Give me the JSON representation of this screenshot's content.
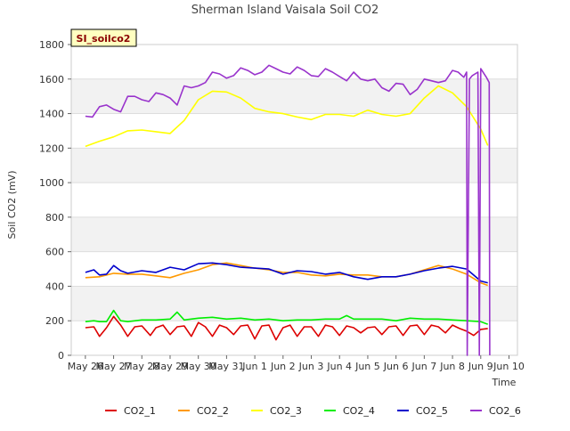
{
  "chart_data": {
    "type": "line",
    "title": "Sherman Island Vaisala Soil CO2",
    "site_label": "SI_soilco2",
    "xlabel": "Time",
    "ylabel": "Soil CO2 (mV)",
    "ylim": [
      0,
      1800
    ],
    "yticks": [
      0,
      200,
      400,
      600,
      800,
      1000,
      1200,
      1400,
      1600,
      1800
    ],
    "xlim": [
      -0.5,
      15.3
    ],
    "xticks": [
      {
        "x": 0,
        "label": "May 26"
      },
      {
        "x": 1,
        "label": "May 27"
      },
      {
        "x": 2,
        "label": "May 28"
      },
      {
        "x": 3,
        "label": "May 29"
      },
      {
        "x": 4,
        "label": "May 30"
      },
      {
        "x": 5,
        "label": "May 31"
      },
      {
        "x": 6,
        "label": "Jun 1"
      },
      {
        "x": 7,
        "label": "Jun 2"
      },
      {
        "x": 8,
        "label": "Jun 3"
      },
      {
        "x": 9,
        "label": "Jun 4"
      },
      {
        "x": 10,
        "label": "Jun 5"
      },
      {
        "x": 11,
        "label": "Jun 6"
      },
      {
        "x": 12,
        "label": "Jun 7"
      },
      {
        "x": 13,
        "label": "Jun 8"
      },
      {
        "x": 14,
        "label": "Jun 9"
      },
      {
        "x": 15,
        "label": "Jun 10"
      }
    ],
    "x_unit_note": "",
    "grid": true,
    "background_bands": true,
    "legend_placement": "bottom",
    "series": [
      {
        "name": "CO2_1",
        "color": "#dd0000",
        "x": [
          0,
          0.3,
          0.5,
          0.75,
          1,
          1.25,
          1.5,
          1.75,
          2,
          2.3,
          2.5,
          2.75,
          3,
          3.25,
          3.5,
          3.75,
          4,
          4.25,
          4.5,
          4.75,
          5,
          5.25,
          5.5,
          5.75,
          6,
          6.25,
          6.5,
          6.75,
          7,
          7.25,
          7.5,
          7.75,
          8,
          8.25,
          8.5,
          8.75,
          9,
          9.25,
          9.5,
          9.75,
          10,
          10.25,
          10.5,
          10.75,
          11,
          11.25,
          11.5,
          11.75,
          12,
          12.25,
          12.5,
          12.75,
          13,
          13.25,
          13.5,
          13.75,
          14,
          14.25
        ],
        "values": [
          160,
          165,
          110,
          160,
          225,
          175,
          110,
          165,
          170,
          115,
          160,
          175,
          120,
          165,
          170,
          110,
          190,
          165,
          110,
          175,
          160,
          120,
          170,
          175,
          95,
          170,
          175,
          90,
          160,
          175,
          110,
          165,
          165,
          110,
          175,
          165,
          115,
          170,
          160,
          130,
          160,
          165,
          120,
          165,
          170,
          115,
          170,
          175,
          120,
          175,
          165,
          130,
          175,
          155,
          140,
          115,
          150,
          155
        ]
      },
      {
        "name": "CO2_2",
        "color": "#ff9900",
        "x": [
          0,
          0.5,
          1,
          1.5,
          2,
          2.5,
          3,
          3.5,
          4,
          4.5,
          5,
          5.5,
          6,
          6.5,
          7,
          7.5,
          8,
          8.5,
          9,
          9.5,
          10,
          10.5,
          11,
          11.5,
          12,
          12.5,
          13,
          13.5,
          14,
          14.25
        ],
        "values": [
          450,
          455,
          475,
          470,
          470,
          460,
          450,
          475,
          495,
          525,
          535,
          520,
          505,
          495,
          480,
          480,
          465,
          460,
          470,
          465,
          465,
          455,
          455,
          470,
          495,
          520,
          500,
          470,
          420,
          405
        ]
      },
      {
        "name": "CO2_3",
        "color": "#ffff00",
        "x": [
          0,
          0.5,
          1,
          1.5,
          2,
          2.5,
          3,
          3.5,
          4,
          4.5,
          5,
          5.5,
          6,
          6.5,
          7,
          7.5,
          8,
          8.5,
          9,
          9.5,
          10,
          10.5,
          11,
          11.5,
          12,
          12.5,
          13,
          13.5,
          14,
          14.25
        ],
        "values": [
          1210,
          1240,
          1265,
          1300,
          1305,
          1295,
          1285,
          1360,
          1480,
          1530,
          1525,
          1490,
          1430,
          1410,
          1400,
          1380,
          1365,
          1395,
          1395,
          1385,
          1420,
          1395,
          1385,
          1400,
          1490,
          1560,
          1520,
          1440,
          1310,
          1215
        ]
      },
      {
        "name": "CO2_4",
        "color": "#00ee00",
        "x": [
          0,
          0.3,
          0.5,
          0.75,
          1,
          1.25,
          1.5,
          2,
          2.5,
          3,
          3.25,
          3.5,
          4,
          4.5,
          5,
          5.5,
          6,
          6.5,
          7,
          7.5,
          8,
          8.5,
          9,
          9.25,
          9.5,
          10,
          10.5,
          11,
          11.5,
          12,
          12.5,
          13,
          13.5,
          14,
          14.25
        ],
        "values": [
          195,
          200,
          195,
          195,
          260,
          200,
          195,
          205,
          205,
          210,
          250,
          205,
          215,
          220,
          210,
          215,
          205,
          210,
          200,
          205,
          205,
          210,
          210,
          230,
          210,
          210,
          210,
          200,
          215,
          210,
          210,
          205,
          200,
          195,
          180
        ]
      },
      {
        "name": "CO2_5",
        "color": "#0000cc",
        "x": [
          0,
          0.3,
          0.5,
          0.75,
          1,
          1.25,
          1.5,
          2,
          2.5,
          3,
          3.5,
          4,
          4.5,
          5,
          5.5,
          6,
          6.5,
          7,
          7.5,
          8,
          8.5,
          9,
          9.5,
          10,
          10.5,
          11,
          11.5,
          12,
          12.5,
          13,
          13.5,
          14,
          14.25
        ],
        "values": [
          480,
          495,
          465,
          470,
          520,
          490,
          475,
          490,
          480,
          510,
          495,
          530,
          535,
          525,
          510,
          505,
          500,
          470,
          490,
          485,
          470,
          480,
          455,
          440,
          455,
          455,
          470,
          490,
          505,
          515,
          500,
          430,
          420
        ]
      },
      {
        "name": "CO2_6",
        "color": "#9933cc",
        "x": [
          0,
          0.25,
          0.5,
          0.75,
          1,
          1.25,
          1.5,
          1.75,
          2,
          2.25,
          2.5,
          2.75,
          3,
          3.25,
          3.5,
          3.75,
          4,
          4.25,
          4.5,
          4.75,
          5,
          5.25,
          5.5,
          5.75,
          6,
          6.25,
          6.5,
          6.75,
          7,
          7.25,
          7.5,
          7.75,
          8,
          8.25,
          8.5,
          8.75,
          9,
          9.25,
          9.5,
          9.75,
          10,
          10.25,
          10.5,
          10.75,
          11,
          11.25,
          11.5,
          11.75,
          12,
          12.25,
          12.5,
          12.75,
          13,
          13.2,
          13.4,
          13.5,
          13.52,
          13.6,
          13.7,
          13.9,
          13.95,
          14.0,
          14.2,
          14.3,
          14.32
        ],
        "values": [
          1385,
          1380,
          1440,
          1450,
          1425,
          1410,
          1500,
          1500,
          1480,
          1470,
          1520,
          1510,
          1490,
          1450,
          1560,
          1550,
          1560,
          1580,
          1640,
          1630,
          1605,
          1620,
          1665,
          1650,
          1625,
          1640,
          1680,
          1660,
          1640,
          1630,
          1670,
          1650,
          1620,
          1615,
          1660,
          1640,
          1615,
          1590,
          1640,
          1600,
          1590,
          1600,
          1550,
          1530,
          1575,
          1570,
          1510,
          1540,
          1600,
          1590,
          1580,
          1590,
          1650,
          1640,
          1610,
          1640,
          0,
          1600,
          1620,
          1640,
          0,
          1660,
          1610,
          1580,
          0
        ]
      }
    ]
  }
}
